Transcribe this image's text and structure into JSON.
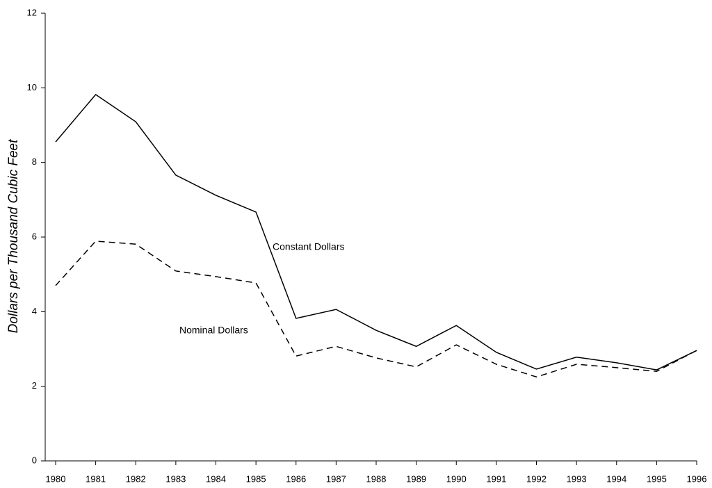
{
  "chart_data": {
    "type": "line",
    "y_label": "Dollars per Thousand Cubic Feet",
    "x": [
      1980,
      1981,
      1982,
      1983,
      1984,
      1985,
      1986,
      1987,
      1988,
      1989,
      1990,
      1991,
      1992,
      1993,
      1994,
      1995,
      1996
    ],
    "series": [
      {
        "name": "Constant Dollars",
        "color": "#000000",
        "line_style": "solid",
        "values": [
          8.55,
          9.82,
          9.09,
          7.66,
          7.12,
          6.67,
          3.82,
          4.06,
          3.5,
          3.07,
          3.63,
          2.91,
          2.46,
          2.78,
          2.63,
          2.44,
          2.96
        ]
      },
      {
        "name": "Nominal Dollars",
        "color": "#000000",
        "line_style": "dashed",
        "values": [
          4.7,
          5.89,
          5.81,
          5.09,
          4.94,
          4.77,
          2.81,
          3.07,
          2.76,
          2.52,
          3.11,
          2.59,
          2.25,
          2.59,
          2.5,
          2.4,
          2.96
        ]
      }
    ],
    "xlim": [
      1980,
      1996
    ],
    "xticks": [
      1980,
      1981,
      1982,
      1983,
      1984,
      1985,
      1986,
      1987,
      1988,
      1989,
      1990,
      1991,
      1992,
      1993,
      1994,
      1995,
      1996
    ],
    "ylim": [
      0,
      12
    ],
    "yticks": [
      0,
      2,
      4,
      6,
      8,
      10,
      12
    ],
    "grid": false
  }
}
